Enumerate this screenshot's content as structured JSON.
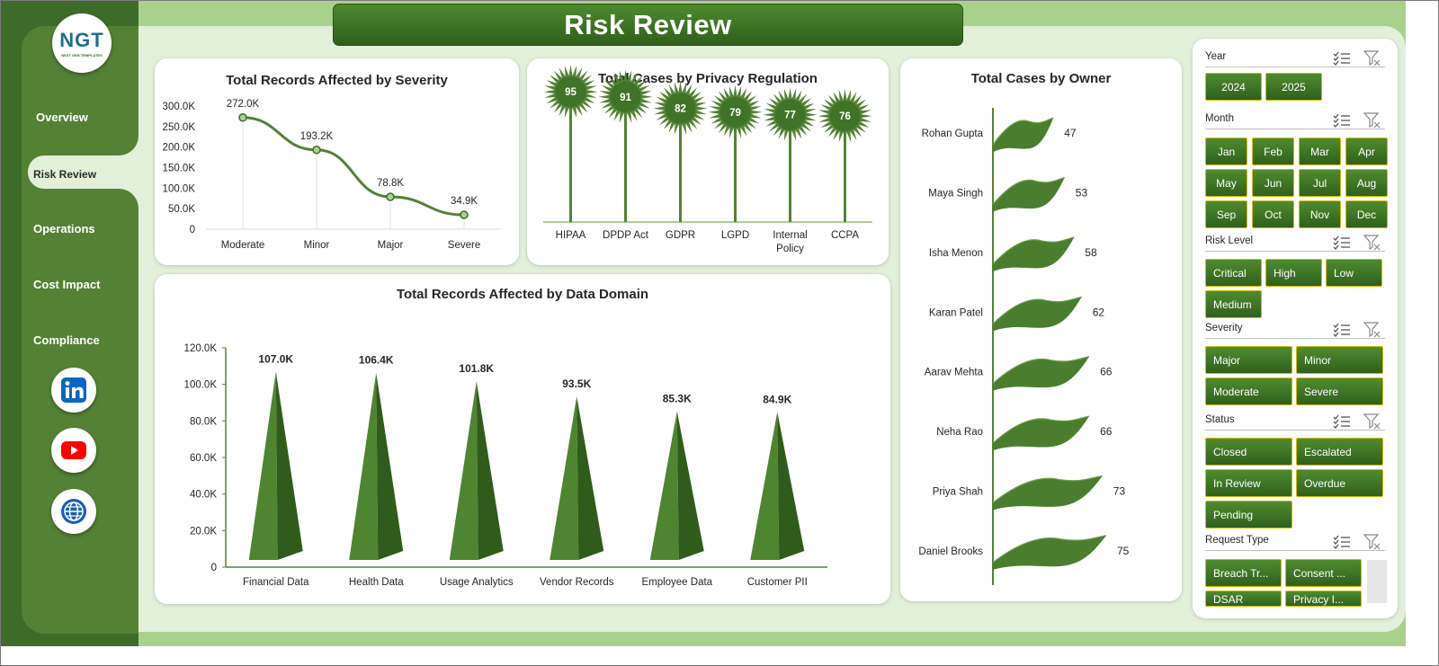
{
  "header": {
    "title": "Risk Review"
  },
  "logo": {
    "text": "NGT",
    "subtext": "NEXT GEN TEMPLATES"
  },
  "nav": {
    "items": [
      {
        "label": "Overview",
        "active": false
      },
      {
        "label": "Risk Review",
        "active": true
      },
      {
        "label": "Operations",
        "active": false
      },
      {
        "label": "Cost Impact",
        "active": false
      },
      {
        "label": "Compliance",
        "active": false
      }
    ]
  },
  "social": [
    "linkedin-icon",
    "youtube-icon",
    "globe-icon"
  ],
  "colors": {
    "dark_green": "#3d6b2a",
    "sidebar_green": "#548235",
    "light_green": "#a9d18e",
    "panel_bg": "#e2f0d9",
    "chart_green": "#548235",
    "chip_border": "#d6b900"
  },
  "chart_data": [
    {
      "id": "severity",
      "type": "line",
      "title": "Total Records Affected by Severity",
      "categories": [
        "Moderate",
        "Minor",
        "Major",
        "Severe"
      ],
      "values": [
        272000,
        193200,
        78800,
        34900
      ],
      "data_labels": [
        "272.0K",
        "193.2K",
        "78.8K",
        "34.9K"
      ],
      "ylim": [
        0,
        300000
      ],
      "yticks": [
        "0",
        "50.0K",
        "100.0K",
        "150.0K",
        "200.0K",
        "250.0K",
        "300.0K"
      ],
      "grid": false
    },
    {
      "id": "regulation",
      "type": "bar",
      "title": "Total Cases by Privacy Regulation",
      "categories": [
        "HIPAA",
        "DPDP Act",
        "GDPR",
        "LGPD",
        "Internal Policy",
        "CCPA"
      ],
      "values": [
        95,
        91,
        82,
        79,
        77,
        76
      ],
      "data_labels": [
        "95",
        "91",
        "82",
        "79",
        "77",
        "76"
      ]
    },
    {
      "id": "owner",
      "type": "bar",
      "title": "Total Cases by Owner",
      "categories": [
        "Rohan Gupta",
        "Maya Singh",
        "Isha Menon",
        "Karan Patel",
        "Aarav Mehta",
        "Neha Rao",
        "Priya Shah",
        "Daniel Brooks"
      ],
      "values": [
        47,
        53,
        58,
        62,
        66,
        66,
        73,
        75
      ],
      "data_labels": [
        "47",
        "53",
        "58",
        "62",
        "66",
        "66",
        "73",
        "75"
      ]
    },
    {
      "id": "domain",
      "type": "bar",
      "title": "Total Records Affected by Data Domain",
      "categories": [
        "Financial Data",
        "Health Data",
        "Usage Analytics",
        "Vendor Records",
        "Employee Data",
        "Customer PII"
      ],
      "values": [
        107000,
        106400,
        101800,
        93500,
        85300,
        84900
      ],
      "data_labels": [
        "107.0K",
        "106.4K",
        "101.8K",
        "93.5K",
        "85.3K",
        "84.9K"
      ],
      "ylim": [
        0,
        120000
      ],
      "yticks": [
        "0",
        "20.0K",
        "40.0K",
        "60.0K",
        "80.0K",
        "100.0K",
        "120.0K"
      ]
    }
  ],
  "slicers": [
    {
      "label": "Year",
      "items": [
        "2024",
        "2025"
      ]
    },
    {
      "label": "Month",
      "items": [
        "Jan",
        "Feb",
        "Mar",
        "Apr",
        "May",
        "Jun",
        "Jul",
        "Aug",
        "Sep",
        "Oct",
        "Nov",
        "Dec"
      ]
    },
    {
      "label": "Risk Level",
      "items": [
        "Critical",
        "High",
        "Low",
        "Medium"
      ]
    },
    {
      "label": "Severity",
      "items": [
        "Major",
        "Minor",
        "Moderate",
        "Severe"
      ]
    },
    {
      "label": "Status",
      "items": [
        "Closed",
        "Escalated",
        "In Review",
        "Overdue",
        "Pending"
      ]
    },
    {
      "label": "Request Type",
      "items": [
        "Breach Tr...",
        "Consent ...",
        "DSAR",
        "Privacy I..."
      ]
    }
  ]
}
